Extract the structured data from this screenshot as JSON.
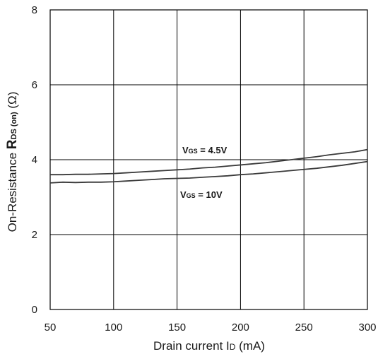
{
  "chart_data": {
    "type": "line",
    "xlabel": {
      "main": "Drain current I",
      "sub": "D",
      "unit": " (mA)"
    },
    "ylabel": {
      "prefix": "On-Resistance ",
      "symbol": "R",
      "sub": "DS (on)",
      "unit": " (Ω)"
    },
    "xlim": [
      50,
      300
    ],
    "ylim": [
      0,
      8
    ],
    "xticks": [
      50,
      100,
      150,
      200,
      250,
      300
    ],
    "yticks": [
      0,
      2,
      4,
      6,
      8
    ],
    "grid": true,
    "series": [
      {
        "name": "VGS = 4.5V",
        "label": {
          "v": "V",
          "sub": "GS",
          "rest": " = 4.5V"
        },
        "x": [
          50,
          60,
          70,
          80,
          90,
          100,
          110,
          120,
          130,
          140,
          150,
          160,
          170,
          180,
          190,
          200,
          210,
          220,
          230,
          240,
          250,
          260,
          270,
          280,
          290,
          300
        ],
        "values": [
          3.6,
          3.6,
          3.61,
          3.61,
          3.62,
          3.63,
          3.65,
          3.67,
          3.69,
          3.71,
          3.73,
          3.75,
          3.78,
          3.8,
          3.83,
          3.86,
          3.89,
          3.92,
          3.96,
          4.0,
          4.04,
          4.08,
          4.13,
          4.17,
          4.21,
          4.27
        ]
      },
      {
        "name": "VGS = 10V",
        "label": {
          "v": "V",
          "sub": "GS",
          "rest": " = 10V"
        },
        "x": [
          50,
          60,
          70,
          80,
          90,
          100,
          110,
          120,
          130,
          140,
          150,
          160,
          170,
          180,
          190,
          200,
          210,
          220,
          230,
          240,
          250,
          260,
          270,
          280,
          290,
          300
        ],
        "values": [
          3.38,
          3.4,
          3.39,
          3.4,
          3.4,
          3.41,
          3.43,
          3.45,
          3.47,
          3.49,
          3.5,
          3.51,
          3.53,
          3.55,
          3.57,
          3.6,
          3.62,
          3.65,
          3.68,
          3.71,
          3.74,
          3.77,
          3.81,
          3.85,
          3.9,
          3.95
        ]
      }
    ]
  }
}
